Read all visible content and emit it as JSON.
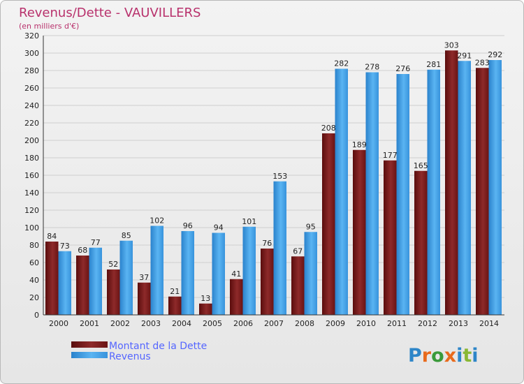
{
  "chart_data": {
    "type": "bar",
    "title": "Revenus/Dette - VAUVILLERS",
    "subtitle": "(en milliers d'€)",
    "xlabel": "",
    "ylabel": "",
    "ylim": [
      0,
      320
    ],
    "yticks": [
      0,
      20,
      40,
      60,
      80,
      100,
      120,
      140,
      160,
      180,
      200,
      220,
      240,
      260,
      280,
      300,
      320
    ],
    "grid": true,
    "categories": [
      "2000",
      "2001",
      "2002",
      "2003",
      "2004",
      "2005",
      "2006",
      "2007",
      "2008",
      "2009",
      "2010",
      "2011",
      "2012",
      "2013",
      "2014"
    ],
    "series": [
      {
        "name": "Montant de la Dette",
        "color": "#7a1a1a",
        "values": [
          84,
          68,
          52,
          37,
          21,
          13,
          41,
          76,
          67,
          208,
          189,
          177,
          165,
          303,
          283
        ]
      },
      {
        "name": "Revenus",
        "color": "#3d9ce3",
        "values": [
          73,
          77,
          85,
          102,
          96,
          94,
          101,
          153,
          95,
          282,
          278,
          276,
          281,
          291,
          292
        ]
      }
    ],
    "legend": "bottom-left"
  },
  "logo": {
    "text": "Proxiti",
    "colors": [
      "#2e86c8",
      "#e86a1c",
      "#3a9a3a",
      "#e86a1c",
      "#2e86c8",
      "#8ab834",
      "#2e86c8"
    ]
  }
}
